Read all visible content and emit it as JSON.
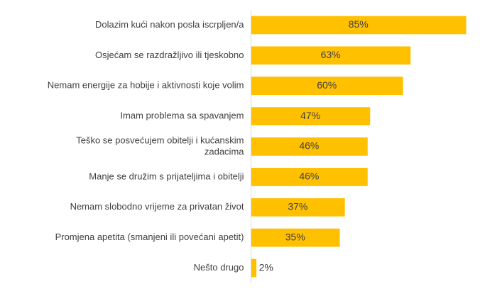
{
  "chart_data": {
    "type": "bar",
    "orientation": "horizontal",
    "categories": [
      [
        "Dolazim kući nakon posla iscrpljen/a"
      ],
      [
        "Osjećam se razdražljivo ili tjeskobno"
      ],
      [
        "Nemam energije za hobije i aktivnosti koje volim"
      ],
      [
        "Imam problema sa spavanjem"
      ],
      [
        "Teško se posvećujem obitelji i kućanskim",
        "zadacima"
      ],
      [
        "Manje se družim s prijateljima i obitelji"
      ],
      [
        "Nemam slobodno vrijeme za privatan život"
      ],
      [
        "Promjena apetita (smanjeni ili povećani apetit)"
      ],
      [
        "Nešto drugo"
      ]
    ],
    "values": [
      85,
      63,
      60,
      47,
      46,
      46,
      37,
      35,
      2
    ],
    "value_labels": [
      "85%",
      "63%",
      "60%",
      "47%",
      "46%",
      "46%",
      "37%",
      "35%",
      "2%"
    ],
    "xlim": [
      0,
      85
    ],
    "title": "",
    "xlabel": "",
    "ylabel": "",
    "grid": false,
    "legend": false,
    "bar_color": "#FFC000",
    "text_color": "#404040",
    "axis_color": "#D9D9D9"
  }
}
